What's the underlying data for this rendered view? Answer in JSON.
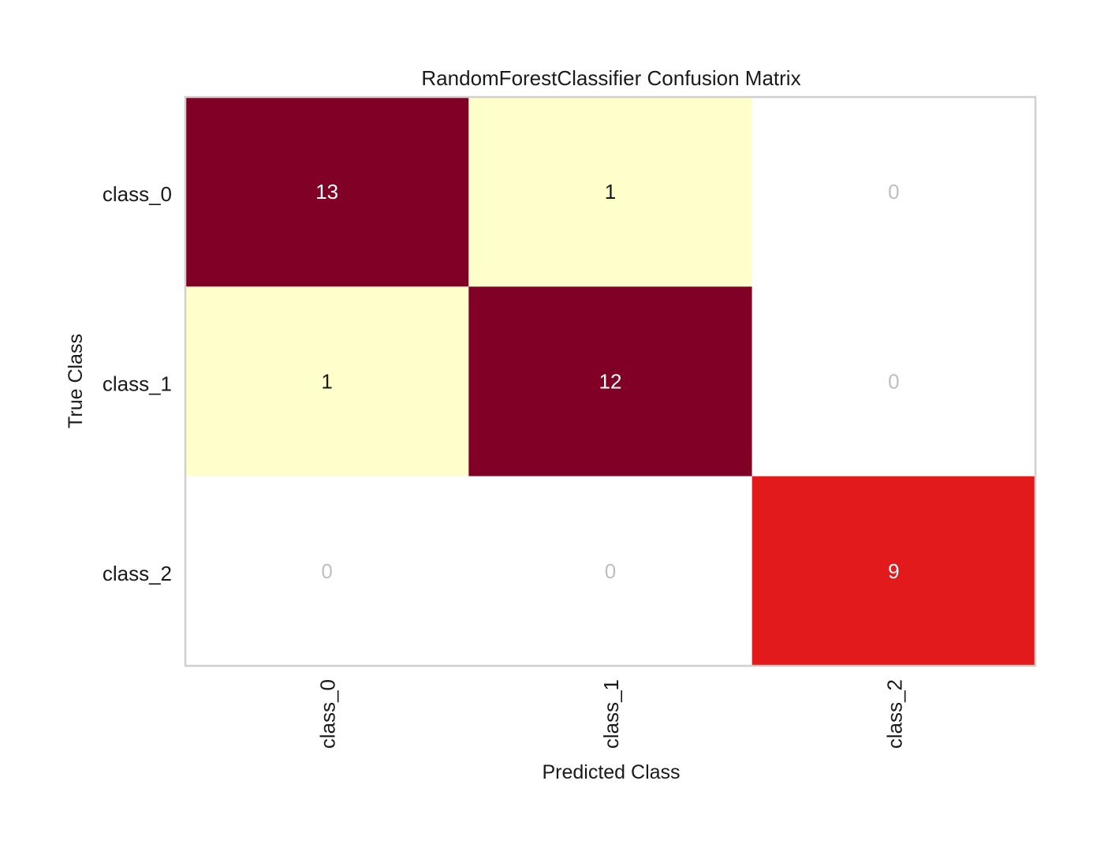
{
  "chart_data": {
    "type": "heatmap",
    "title": "RandomForestClassifier Confusion Matrix",
    "xlabel": "Predicted Class",
    "ylabel": "True Class",
    "x_categories": [
      "class_0",
      "class_1",
      "class_2"
    ],
    "y_categories": [
      "class_0",
      "class_1",
      "class_2"
    ],
    "values": [
      [
        13,
        1,
        0
      ],
      [
        1,
        12,
        0
      ],
      [
        0,
        0,
        9
      ]
    ],
    "colormap": "YlOrRd",
    "zero_cell_color": "#ffffff",
    "zero_text_color": "#bfbfbf",
    "light_text_color": "#ffffff",
    "dark_text_color": "#1a1a1a",
    "frame_color": "#cfcfcf",
    "grid": false
  }
}
